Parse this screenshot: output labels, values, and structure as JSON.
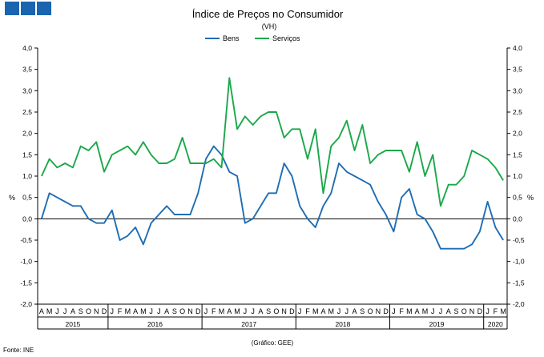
{
  "logo": {
    "color": "#1a65b0"
  },
  "chart_data": {
    "type": "line",
    "title": "Índice de Preços no Consumidor",
    "subtitle": "(VH)",
    "ylabel_left": "%",
    "ylabel_right": "%",
    "ylim": [
      -2.0,
      4.0
    ],
    "yticks": [
      "4,0",
      "3,5",
      "3,0",
      "2,5",
      "2,0",
      "1,5",
      "1,0",
      "0,5",
      "0,0",
      "-0,5",
      "-1,0",
      "-1,5",
      "-2,0"
    ],
    "grid": false,
    "legend_position": "top-center",
    "x": [
      "2015-04",
      "2015-05",
      "2015-06",
      "2015-07",
      "2015-08",
      "2015-09",
      "2015-10",
      "2015-11",
      "2015-12",
      "2016-01",
      "2016-02",
      "2016-03",
      "2016-04",
      "2016-05",
      "2016-06",
      "2016-07",
      "2016-08",
      "2016-09",
      "2016-10",
      "2016-11",
      "2016-12",
      "2017-01",
      "2017-02",
      "2017-03",
      "2017-04",
      "2017-05",
      "2017-06",
      "2017-07",
      "2017-08",
      "2017-09",
      "2017-10",
      "2017-11",
      "2017-12",
      "2018-01",
      "2018-02",
      "2018-03",
      "2018-04",
      "2018-05",
      "2018-06",
      "2018-07",
      "2018-08",
      "2018-09",
      "2018-10",
      "2018-11",
      "2018-12",
      "2019-01",
      "2019-02",
      "2019-03",
      "2019-04",
      "2019-05",
      "2019-06",
      "2019-07",
      "2019-08",
      "2019-09",
      "2019-10",
      "2019-11",
      "2019-12",
      "2020-01",
      "2020-02",
      "2020-03"
    ],
    "month_labels": [
      "A",
      "M",
      "J",
      "J",
      "A",
      "S",
      "O",
      "N",
      "D",
      "J",
      "F",
      "M",
      "A",
      "M",
      "J",
      "J",
      "A",
      "S",
      "O",
      "N",
      "D",
      "J",
      "F",
      "M",
      "A",
      "M",
      "J",
      "J",
      "A",
      "S",
      "O",
      "N",
      "D",
      "J",
      "F",
      "M",
      "A",
      "M",
      "J",
      "J",
      "A",
      "S",
      "O",
      "N",
      "D",
      "J",
      "F",
      "M",
      "A",
      "M",
      "J",
      "J",
      "A",
      "S",
      "O",
      "N",
      "D",
      "J",
      "F",
      "M"
    ],
    "year_labels": [
      "2015",
      "2016",
      "2017",
      "2018",
      "2019",
      "2020"
    ],
    "series": [
      {
        "name": "Bens",
        "color": "#1f6db4",
        "values": [
          0.0,
          0.6,
          0.5,
          0.4,
          0.3,
          0.3,
          0.0,
          -0.1,
          -0.1,
          0.2,
          -0.5,
          -0.4,
          -0.2,
          -0.6,
          -0.1,
          0.1,
          0.3,
          0.1,
          0.1,
          0.1,
          0.6,
          1.4,
          1.7,
          1.5,
          1.1,
          1.0,
          -0.1,
          0.0,
          0.3,
          0.6,
          0.6,
          1.3,
          1.0,
          0.3,
          0.0,
          -0.2,
          0.3,
          0.6,
          1.3,
          1.1,
          1.0,
          0.9,
          0.8,
          0.4,
          0.1,
          -0.3,
          0.5,
          0.7,
          0.1,
          0.0,
          -0.3,
          -0.7,
          -0.7,
          -0.7,
          -0.7,
          -0.6,
          -0.3,
          0.4,
          -0.2,
          -0.5
        ]
      },
      {
        "name": "Serviços",
        "color": "#1aa84a",
        "values": [
          1.0,
          1.4,
          1.2,
          1.3,
          1.2,
          1.7,
          1.6,
          1.8,
          1.1,
          1.5,
          1.6,
          1.7,
          1.5,
          1.8,
          1.5,
          1.3,
          1.3,
          1.4,
          1.9,
          1.3,
          1.3,
          1.3,
          1.4,
          1.2,
          3.3,
          2.1,
          2.4,
          2.2,
          2.4,
          2.5,
          2.5,
          1.9,
          2.1,
          2.1,
          1.4,
          2.1,
          0.6,
          1.7,
          1.9,
          2.3,
          1.6,
          2.2,
          1.3,
          1.5,
          1.6,
          1.6,
          1.6,
          1.1,
          1.8,
          1.0,
          1.5,
          0.3,
          0.8,
          0.8,
          1.0,
          1.6,
          1.5,
          1.4,
          1.2,
          0.9
        ]
      }
    ]
  },
  "footer": {
    "source": "Fonte: INE",
    "credit": "(Gráfico: GEE)"
  }
}
